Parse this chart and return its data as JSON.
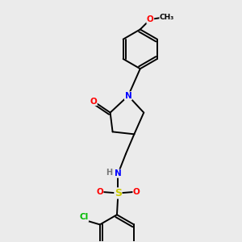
{
  "bg_color": "#ebebeb",
  "bond_color": "#000000",
  "bond_width": 1.4,
  "atom_colors": {
    "O": "#ff0000",
    "N": "#0000ff",
    "S": "#cccc00",
    "Cl": "#00bb00",
    "H": "#777777",
    "C": "#000000"
  },
  "font_size": 7.5,
  "methoxy_label": "O",
  "methyl_label": "CH₃",
  "sulfonyl_s": "S",
  "n_label": "N",
  "h_label": "H",
  "o_label": "O",
  "cl_label": "Cl"
}
